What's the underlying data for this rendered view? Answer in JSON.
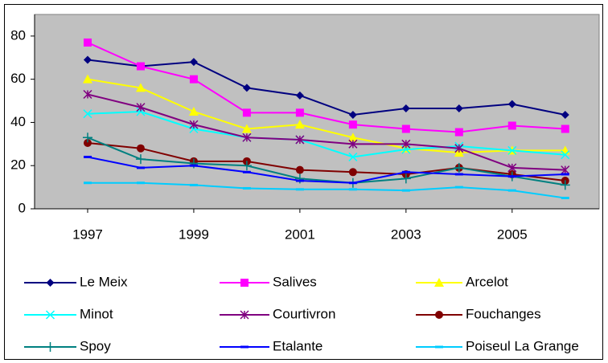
{
  "chart_data": {
    "type": "line",
    "x": [
      1997,
      1998,
      1999,
      2000,
      2001,
      2002,
      2003,
      2004,
      2005,
      2006
    ],
    "xlim": [
      1996,
      2006.64
    ],
    "xticks": [
      1997,
      1999,
      2001,
      2003,
      2005
    ],
    "ylim": [
      0,
      90
    ],
    "yticks": [
      0,
      20,
      40,
      60,
      80
    ],
    "grid": false,
    "legend": "bottom",
    "plot_background": "#c0c0c0",
    "series": [
      {
        "name": "Le Meix",
        "color": "#000080",
        "marker": "diamond",
        "values": [
          69,
          66,
          68,
          56,
          52.5,
          43.5,
          46.5,
          46.5,
          48.5,
          43.5
        ]
      },
      {
        "name": "Salives",
        "color": "#ff00ff",
        "marker": "square",
        "values": [
          77,
          66,
          60,
          44.5,
          44.5,
          39,
          37,
          35.5,
          38.5,
          37
        ]
      },
      {
        "name": "Arcelot",
        "color": "#ffff00",
        "marker": "triangle",
        "values": [
          60,
          56,
          45,
          37,
          39,
          33,
          28,
          26,
          27,
          27
        ]
      },
      {
        "name": "Minot",
        "color": "#00ffff",
        "marker": "x",
        "values": [
          44,
          45,
          37,
          33,
          32,
          24,
          27.5,
          29,
          27,
          25
        ]
      },
      {
        "name": "Courtivron",
        "color": "#800080",
        "marker": "star",
        "values": [
          53,
          47,
          39,
          33,
          32,
          30,
          30,
          28,
          19,
          18
        ]
      },
      {
        "name": "Fouchanges",
        "color": "#800000",
        "marker": "circle",
        "values": [
          30.5,
          28,
          22,
          22,
          18,
          17,
          16,
          19,
          16,
          13
        ]
      },
      {
        "name": "Spoy",
        "color": "#008080",
        "marker": "plus",
        "values": [
          33,
          23,
          21,
          20,
          14,
          12,
          14,
          19,
          15,
          11
        ]
      },
      {
        "name": "Etalante",
        "color": "#0000ff",
        "marker": "dash",
        "values": [
          24,
          19,
          20,
          17,
          13,
          12,
          17,
          16,
          15,
          16
        ]
      },
      {
        "name": "Poiseul La Grange",
        "color": "#00ccff",
        "marker": "dash",
        "values": [
          12,
          12,
          11,
          9.5,
          9,
          9,
          8.5,
          10,
          8.5,
          5
        ]
      }
    ]
  }
}
